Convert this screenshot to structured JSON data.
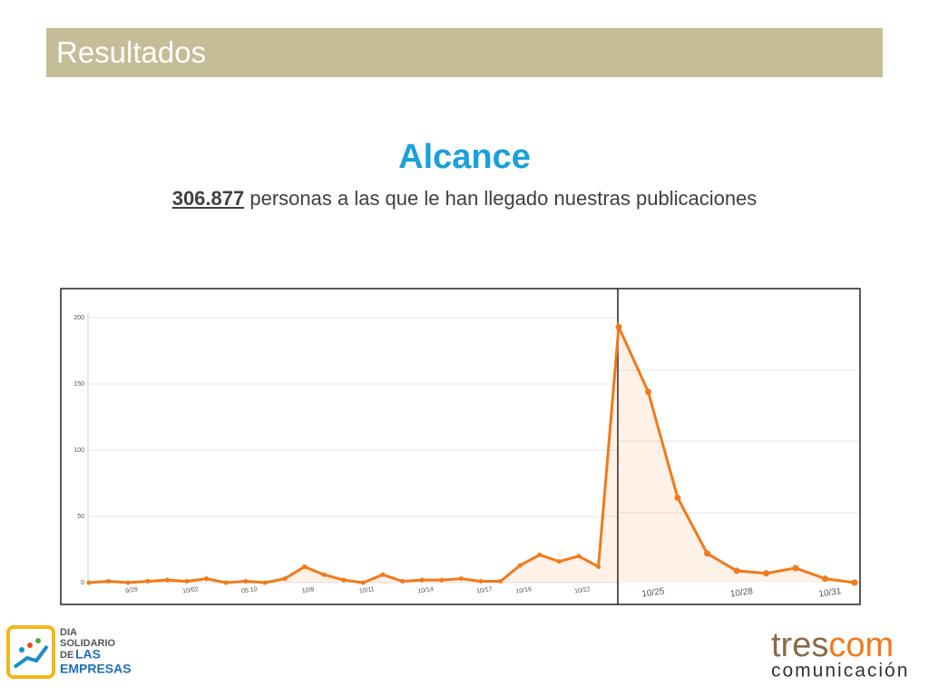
{
  "header": {
    "title": "Resultados"
  },
  "heading": "Alcance",
  "subtitle": {
    "highlight": "306.877",
    "text": "personas a las que le han llegado nuestras publicaciones"
  },
  "chart_data": {
    "type": "line",
    "categories": [
      null,
      null,
      "9/29",
      null,
      null,
      "10/02",
      null,
      null,
      "05.10",
      null,
      null,
      "10/8",
      null,
      null,
      "10/11",
      null,
      null,
      "10/14",
      null,
      null,
      "10/17",
      null,
      "10/19",
      null,
      null,
      "10/22",
      null,
      null,
      "10/25",
      null,
      null,
      "10/28",
      null,
      null,
      "10/31",
      null
    ],
    "series": [
      {
        "name": "Alcance",
        "color": "#f07a1a",
        "values": [
          0,
          1,
          0,
          1,
          2,
          1,
          3,
          0,
          1,
          0,
          3,
          12,
          6,
          2,
          0,
          6,
          1,
          2,
          2,
          3,
          1,
          1,
          13,
          21,
          16,
          20,
          12,
          193,
          144,
          64,
          22,
          9,
          7,
          11,
          3,
          0
        ]
      }
    ],
    "ylim": [
      0,
      200
    ],
    "yticks": [
      0,
      50,
      100,
      150,
      200
    ],
    "grid": true
  },
  "logos": {
    "left": [
      "DIA",
      "SOLIDARIO",
      "DE",
      "LAS",
      "EMPRESAS"
    ],
    "right": {
      "part1": "tres",
      "part2": "com",
      "tagline": "comunicación"
    }
  }
}
